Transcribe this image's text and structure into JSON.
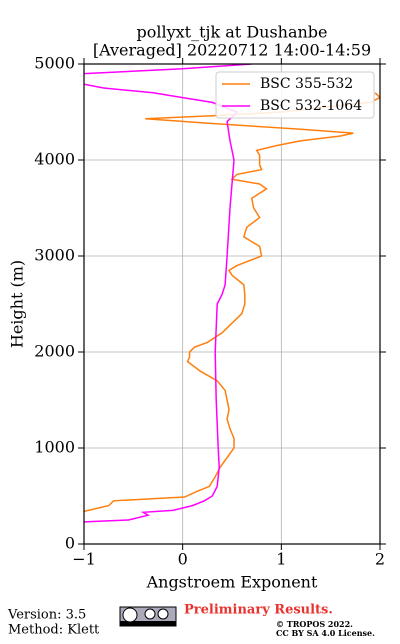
{
  "chart_data": {
    "type": "line",
    "title": "pollyxt_tjk at Dushanbe",
    "subtitle": "[Averaged] 20220712 14:00-14:59",
    "x_label": "Angstroem Exponent",
    "y_label": "Height (m)",
    "xlim": [
      -1,
      2
    ],
    "xticks": [
      {
        "value": -1,
        "label": "−1"
      },
      0,
      1,
      2
    ],
    "ylim": [
      0,
      5000
    ],
    "yticks": [
      0,
      1000,
      2000,
      3000,
      4000,
      5000
    ],
    "grid": true,
    "legend": "upper right",
    "series": [
      {
        "name": "BSC 355-532",
        "color": "#ff7f0e",
        "y": [
          340,
          400,
          450,
          490,
          550,
          600,
          700,
          800,
          900,
          1000,
          1100,
          1200,
          1300,
          1400,
          1500,
          1600,
          1700,
          1800,
          1900,
          1950,
          2000,
          2050,
          2100,
          2200,
          2300,
          2400,
          2500,
          2600,
          2700,
          2800,
          2850,
          2900,
          3000,
          3100,
          3200,
          3300,
          3400,
          3500,
          3600,
          3700,
          3750,
          3800,
          3850,
          3900,
          3950,
          4050,
          4100,
          4150,
          4200,
          4250,
          4280,
          4320,
          4380,
          4430,
          4460,
          4500,
          4600,
          4650,
          4700
        ],
        "values": [
          -1.0,
          -0.75,
          -0.7,
          0.02,
          0.15,
          0.27,
          0.33,
          0.38,
          0.45,
          0.52,
          0.52,
          0.48,
          0.45,
          0.47,
          0.45,
          0.43,
          0.35,
          0.18,
          0.05,
          0.07,
          0.07,
          0.12,
          0.25,
          0.4,
          0.5,
          0.6,
          0.63,
          0.63,
          0.62,
          0.5,
          0.47,
          0.55,
          0.8,
          0.78,
          0.62,
          0.65,
          0.78,
          0.72,
          0.7,
          0.85,
          0.78,
          0.5,
          0.55,
          0.8,
          0.78,
          0.78,
          0.75,
          0.95,
          1.2,
          1.6,
          1.73,
          1.2,
          0.3,
          -0.38,
          0.3,
          1.0,
          1.9,
          2.0,
          1.95
        ]
      },
      {
        "name": "BSC 532-1064",
        "color": "#ff00ff",
        "y": [
          230,
          250,
          300,
          330,
          350,
          400,
          450,
          500,
          600,
          800,
          1000,
          1500,
          2000,
          2500,
          2600,
          2700,
          3000,
          3500,
          4000,
          4200,
          4400,
          4500,
          4600,
          4650,
          4700,
          4750,
          4790,
          4850,
          4900,
          4950,
          5000
        ],
        "values": [
          -1.0,
          -0.55,
          -0.35,
          -0.4,
          -0.1,
          0.1,
          0.22,
          0.3,
          0.35,
          0.37,
          0.36,
          0.34,
          0.33,
          0.35,
          0.4,
          0.43,
          0.45,
          0.48,
          0.52,
          0.48,
          0.45,
          0.55,
          0.3,
          0.0,
          -0.3,
          -0.8,
          -1.0,
          null,
          -1.0,
          0.0,
          0.7
        ]
      }
    ]
  },
  "footer": {
    "version": "Version: 3.5",
    "method": "Method: Klett",
    "status": "Preliminary Results.",
    "copyright": "© TROPOS 2022.",
    "license": "CC BY SA 4.0 License."
  }
}
